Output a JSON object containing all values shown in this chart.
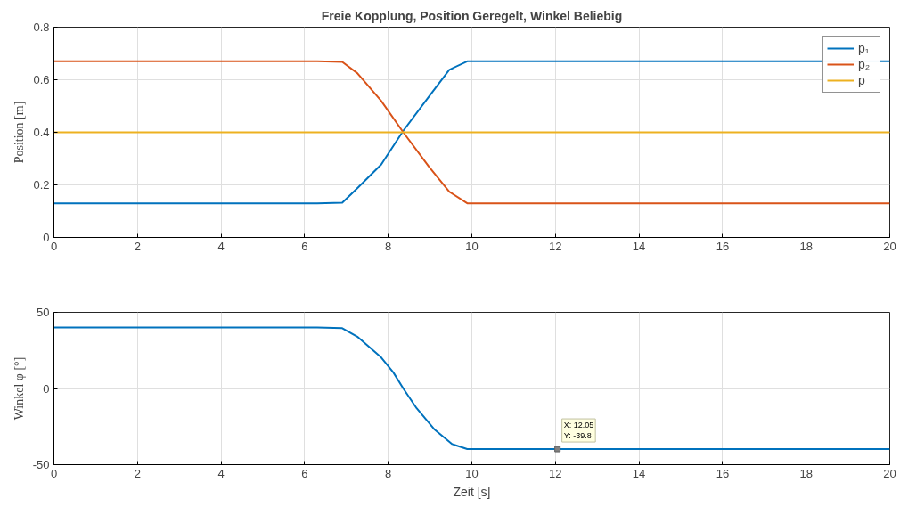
{
  "chart_data": [
    {
      "type": "line",
      "title": "Freie Kopplung, Position Geregelt, Winkel Beliebig",
      "ylabel": "Position [m]",
      "xlim": [
        0,
        20
      ],
      "xticks": [
        0,
        2,
        4,
        6,
        8,
        10,
        12,
        14,
        16,
        18,
        20
      ],
      "ylim": [
        0,
        0.8
      ],
      "yticks": [
        0,
        0.2,
        0.4,
        0.6,
        0.8
      ],
      "grid": true,
      "legend": "top right",
      "series": [
        {
          "name": "p₁",
          "color": "#0072bd",
          "x": [
            0,
            6.3,
            6.9,
            7.26,
            7.83,
            8.36,
            8.97,
            9.46,
            9.89,
            20
          ],
          "values": [
            0.13,
            0.13,
            0.132,
            0.187,
            0.277,
            0.406,
            0.535,
            0.638,
            0.67,
            0.67
          ]
        },
        {
          "name": "p₂",
          "color": "#d95319",
          "x": [
            0,
            6.3,
            6.9,
            7.26,
            7.83,
            8.36,
            8.97,
            9.46,
            9.89,
            20
          ],
          "values": [
            0.67,
            0.67,
            0.668,
            0.625,
            0.52,
            0.4,
            0.27,
            0.174,
            0.13,
            0.13
          ]
        },
        {
          "name": "p",
          "color": "#edb120",
          "x": [
            0,
            20
          ],
          "values": [
            0.4,
            0.4
          ]
        }
      ]
    },
    {
      "type": "line",
      "xlabel": "Zeit [s]",
      "ylabel": "Winkel φ [°]",
      "xlim": [
        0,
        20
      ],
      "xticks": [
        0,
        2,
        4,
        6,
        8,
        10,
        12,
        14,
        16,
        18,
        20
      ],
      "ylim": [
        -50,
        50
      ],
      "yticks": [
        -50,
        0,
        50
      ],
      "grid": true,
      "legend": false,
      "series": [
        {
          "color": "#0072bd",
          "x": [
            0,
            6.3,
            6.9,
            7.26,
            7.83,
            8.12,
            8.36,
            8.68,
            9.1,
            9.53,
            9.89,
            20
          ],
          "values": [
            40,
            40,
            39.6,
            34,
            20.4,
            10.6,
            0,
            -13,
            -26.7,
            -36.5,
            -39.8,
            -39.8
          ]
        }
      ],
      "annotations": [
        {
          "text": "X: 12.05\nY: -39.8",
          "x": 12.05,
          "y": -39.8
        }
      ]
    }
  ]
}
